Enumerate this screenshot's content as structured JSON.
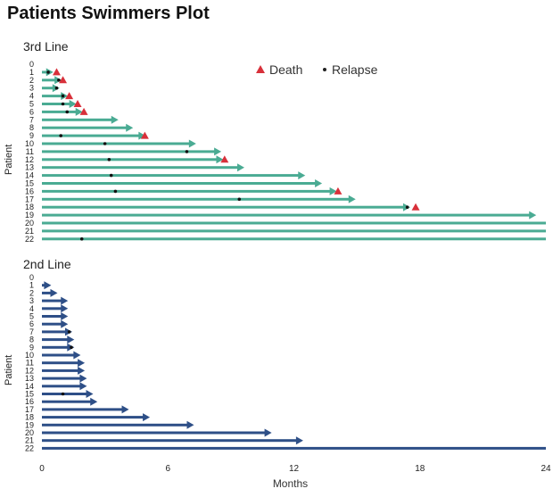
{
  "title": "Patients Swimmers Plot",
  "chart_data": [
    {
      "type": "swimmer",
      "panel_title": "3rd Line",
      "ylabel": "Patient",
      "xlabel": "",
      "color": "#4aab93",
      "xlim": [
        0,
        24
      ],
      "patients": [
        0,
        1,
        2,
        3,
        4,
        5,
        6,
        7,
        8,
        9,
        10,
        11,
        12,
        13,
        14,
        15,
        16,
        17,
        18,
        19,
        20,
        21,
        22
      ],
      "bars": [
        {
          "patient": 0,
          "end": 0,
          "arrow": false
        },
        {
          "patient": 1,
          "end": 0.5,
          "arrow": true,
          "death": 0.7,
          "relapse": 0.3
        },
        {
          "patient": 2,
          "end": 0.9,
          "arrow": true,
          "death": 1.0,
          "relapse": 0.8
        },
        {
          "patient": 3,
          "end": 0.8,
          "arrow": true,
          "relapse": 0.7
        },
        {
          "patient": 4,
          "end": 1.2,
          "arrow": true,
          "death": 1.3,
          "relapse": 1.0
        },
        {
          "patient": 5,
          "end": 1.6,
          "arrow": true,
          "death": 1.7,
          "relapse": 1.0
        },
        {
          "patient": 6,
          "end": 1.9,
          "arrow": true,
          "death": 2.0,
          "relapse": 1.2
        },
        {
          "patient": 7,
          "end": 3.6,
          "arrow": true
        },
        {
          "patient": 8,
          "end": 4.3,
          "arrow": true
        },
        {
          "patient": 9,
          "end": 4.9,
          "arrow": true,
          "death": 4.9,
          "relapse": 0.9
        },
        {
          "patient": 10,
          "end": 7.3,
          "arrow": true,
          "relapse": 3.0
        },
        {
          "patient": 11,
          "end": 8.5,
          "arrow": true,
          "relapse": 6.9
        },
        {
          "patient": 12,
          "end": 8.6,
          "arrow": true,
          "death": 8.7,
          "relapse": 3.2
        },
        {
          "patient": 13,
          "end": 9.6,
          "arrow": true
        },
        {
          "patient": 14,
          "end": 12.5,
          "arrow": true,
          "relapse": 3.3
        },
        {
          "patient": 15,
          "end": 13.3,
          "arrow": true
        },
        {
          "patient": 16,
          "end": 14.0,
          "arrow": true,
          "death": 14.1,
          "relapse": 3.5
        },
        {
          "patient": 17,
          "end": 14.9,
          "arrow": true,
          "relapse": 9.4
        },
        {
          "patient": 18,
          "end": 17.5,
          "arrow": true,
          "death": 17.8,
          "relapse": 17.4
        },
        {
          "patient": 19,
          "end": 23.5,
          "arrow": true
        },
        {
          "patient": 20,
          "end": 24,
          "arrow": false
        },
        {
          "patient": 21,
          "end": 24,
          "arrow": false
        },
        {
          "patient": 22,
          "end": 24,
          "arrow": false,
          "relapse": 1.9
        }
      ],
      "legend": [
        {
          "symbol": "triangle",
          "label": "Death",
          "color": "#d8303a"
        },
        {
          "symbol": "dot",
          "label": "Relapse",
          "color": "#222222"
        }
      ]
    },
    {
      "type": "swimmer",
      "panel_title": "2nd Line",
      "ylabel": "Patient",
      "xlabel": "Months",
      "color": "#2e4f87",
      "xlim": [
        0,
        24
      ],
      "xticks": [
        0,
        6,
        12,
        18,
        24
      ],
      "patients": [
        0,
        1,
        2,
        3,
        4,
        5,
        6,
        7,
        8,
        9,
        10,
        11,
        12,
        13,
        14,
        15,
        16,
        17,
        18,
        19,
        20,
        21,
        22
      ],
      "bars": [
        {
          "patient": 0,
          "end": 0,
          "arrow": false
        },
        {
          "patient": 1,
          "end": 0.4,
          "arrow": true
        },
        {
          "patient": 2,
          "end": 0.7,
          "arrow": true
        },
        {
          "patient": 3,
          "end": 1.2,
          "arrow": true
        },
        {
          "patient": 4,
          "end": 1.2,
          "arrow": true
        },
        {
          "patient": 5,
          "end": 1.2,
          "arrow": true
        },
        {
          "patient": 6,
          "end": 1.2,
          "arrow": true
        },
        {
          "patient": 7,
          "end": 1.4,
          "arrow": true,
          "relapse": 1.3
        },
        {
          "patient": 8,
          "end": 1.5,
          "arrow": true
        },
        {
          "patient": 9,
          "end": 1.5,
          "arrow": true,
          "relapse": 1.4
        },
        {
          "patient": 10,
          "end": 1.8,
          "arrow": true
        },
        {
          "patient": 11,
          "end": 2.0,
          "arrow": true
        },
        {
          "patient": 12,
          "end": 2.0,
          "arrow": true
        },
        {
          "patient": 13,
          "end": 2.1,
          "arrow": true
        },
        {
          "patient": 14,
          "end": 2.1,
          "arrow": true
        },
        {
          "patient": 15,
          "end": 2.4,
          "arrow": true,
          "relapse": 1.0
        },
        {
          "patient": 16,
          "end": 2.6,
          "arrow": true
        },
        {
          "patient": 17,
          "end": 4.1,
          "arrow": true
        },
        {
          "patient": 18,
          "end": 5.1,
          "arrow": true
        },
        {
          "patient": 19,
          "end": 7.2,
          "arrow": true
        },
        {
          "patient": 20,
          "end": 10.9,
          "arrow": true
        },
        {
          "patient": 21,
          "end": 12.4,
          "arrow": true
        },
        {
          "patient": 22,
          "end": 24,
          "arrow": false
        }
      ]
    }
  ]
}
